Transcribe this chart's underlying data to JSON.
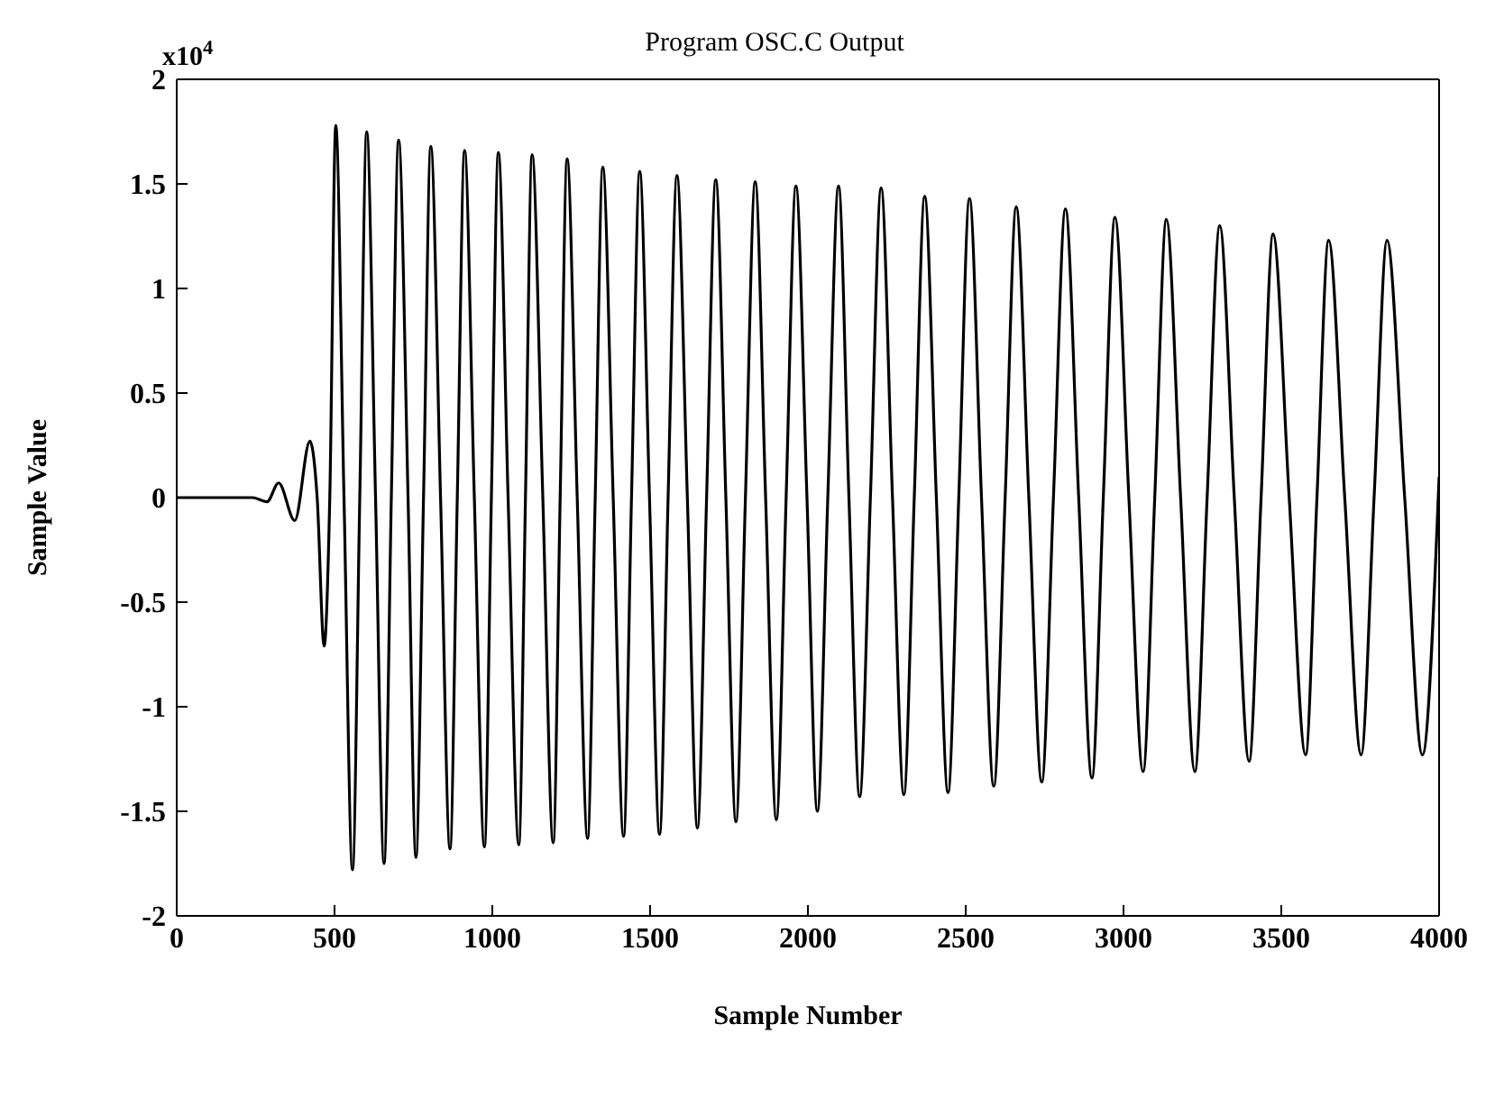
{
  "chart_data": {
    "type": "line",
    "title": "Program OSC.C Output",
    "xlabel": "Sample Number",
    "ylabel": "Sample Value",
    "annotations": [
      "x10$^{4}$"
    ],
    "xlim": [
      0,
      4000
    ],
    "xticks": [
      0,
      500,
      1000,
      1500,
      2000,
      2500,
      3000,
      3500,
      4000
    ],
    "ylim": [
      -2,
      2
    ],
    "yticks": [
      -2,
      -1.5,
      -1,
      -0.5,
      0,
      0.5,
      1,
      1.5,
      2
    ],
    "marker": "none",
    "line_style": "solid",
    "series": [
      {
        "color": "#000000",
        "x": [
          0,
          240,
          286,
          323,
          374,
          422,
          445,
          467,
          485,
          504,
          530,
          557,
          580,
          602,
          630,
          657,
          680,
          703,
          733,
          758,
          782,
          805,
          836,
          866,
          889,
          912,
          943,
          975,
          997,
          1019,
          1050,
          1084,
          1105,
          1126,
          1160,
          1193,
          1215,
          1237,
          1269,
          1302,
          1326,
          1350,
          1383,
          1416,
          1441,
          1467,
          1498,
          1530,
          1557,
          1585,
          1618,
          1650,
          1679,
          1708,
          1740,
          1772,
          1802,
          1833,
          1866,
          1900,
          1931,
          1962,
          1997,
          2030,
          2063,
          2097,
          2130,
          2164,
          2198,
          2232,
          2268,
          2304,
          2337,
          2370,
          2407,
          2444,
          2478,
          2512,
          2550,
          2589,
          2625,
          2660,
          2700,
          2741,
          2778,
          2816,
          2858,
          2900,
          2936,
          2973,
          3017,
          3062,
          3099,
          3136,
          3181,
          3226,
          3265,
          3305,
          3351,
          3398,
          3436,
          3474,
          3525,
          3577,
          3613,
          3650,
          3701,
          3753,
          3794,
          3835,
          3891,
          3947,
          4000
        ],
        "values": [
          0,
          0,
          -0.02,
          0.07,
          -0.11,
          0.27,
          0,
          -0.71,
          0,
          1.78,
          0,
          -1.78,
          0,
          1.75,
          0,
          -1.75,
          0,
          1.71,
          0,
          -1.72,
          0,
          1.68,
          0,
          -1.68,
          0,
          1.66,
          0,
          -1.67,
          0,
          1.65,
          0,
          -1.66,
          0,
          1.64,
          0,
          -1.65,
          0,
          1.62,
          0,
          -1.63,
          0,
          1.58,
          0,
          -1.62,
          0,
          1.56,
          0,
          -1.61,
          0,
          1.54,
          0,
          -1.58,
          0,
          1.52,
          0,
          -1.55,
          0,
          1.51,
          0,
          -1.54,
          0,
          1.49,
          0,
          -1.5,
          0,
          1.49,
          0,
          -1.43,
          0,
          1.48,
          0,
          -1.42,
          0,
          1.44,
          0,
          -1.41,
          0,
          1.43,
          0,
          -1.38,
          0,
          1.39,
          0,
          -1.36,
          0,
          1.38,
          0,
          -1.34,
          0,
          1.34,
          0,
          -1.31,
          0,
          1.33,
          0,
          -1.31,
          0,
          1.3,
          0,
          -1.26,
          0,
          1.26,
          0,
          -1.23,
          0,
          1.23,
          0,
          -1.23,
          0,
          1.23,
          0,
          -1.23,
          0.1
        ]
      }
    ]
  }
}
